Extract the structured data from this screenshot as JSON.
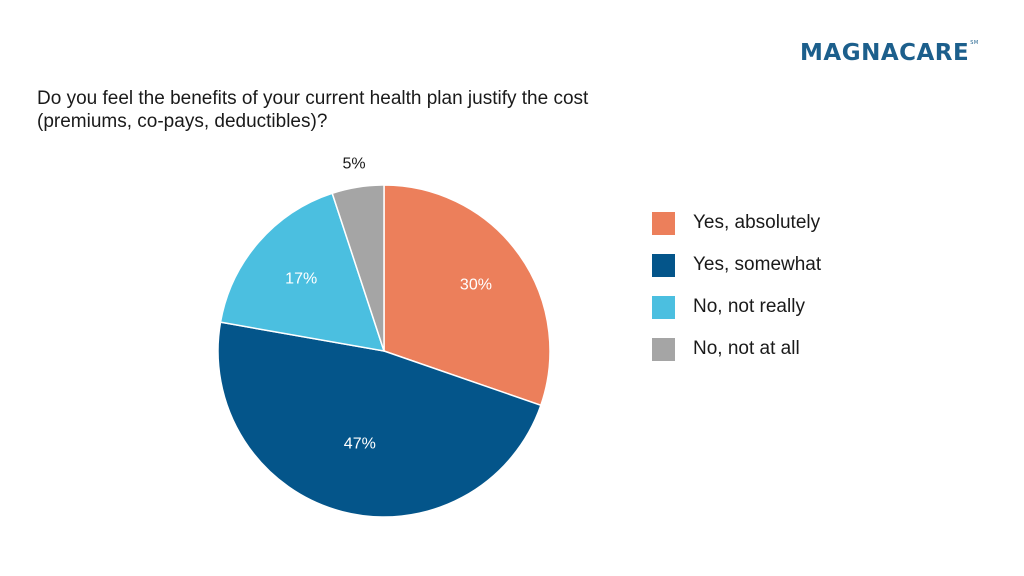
{
  "logo": {
    "name": "MAGNACARE",
    "mark": "SM"
  },
  "question": {
    "line1": "Do you feel the benefits of your current health plan justify the cost",
    "line2": "(premiums, co-pays, deductibles)?"
  },
  "chart_data": {
    "type": "pie",
    "title": "Do you feel the benefits of your current health plan justify the cost (premiums, co-pays, deductibles)?",
    "legend_position": "right",
    "slices": [
      {
        "label": "Yes, absolutely",
        "value": 30,
        "display": "30%",
        "color": "#ec7f5b",
        "label_color": "#ffffff"
      },
      {
        "label": "Yes, somewhat",
        "value": 47,
        "display": "47%",
        "color": "#04558a",
        "label_color": "#ffffff"
      },
      {
        "label": "No, not really",
        "value": 17,
        "display": "17%",
        "color": "#4bbfe0",
        "label_color": "#ffffff"
      },
      {
        "label": "No, not at all",
        "value": 5,
        "display": "5%",
        "color": "#a5a5a5",
        "label_color": "#1a1a1a"
      }
    ]
  }
}
